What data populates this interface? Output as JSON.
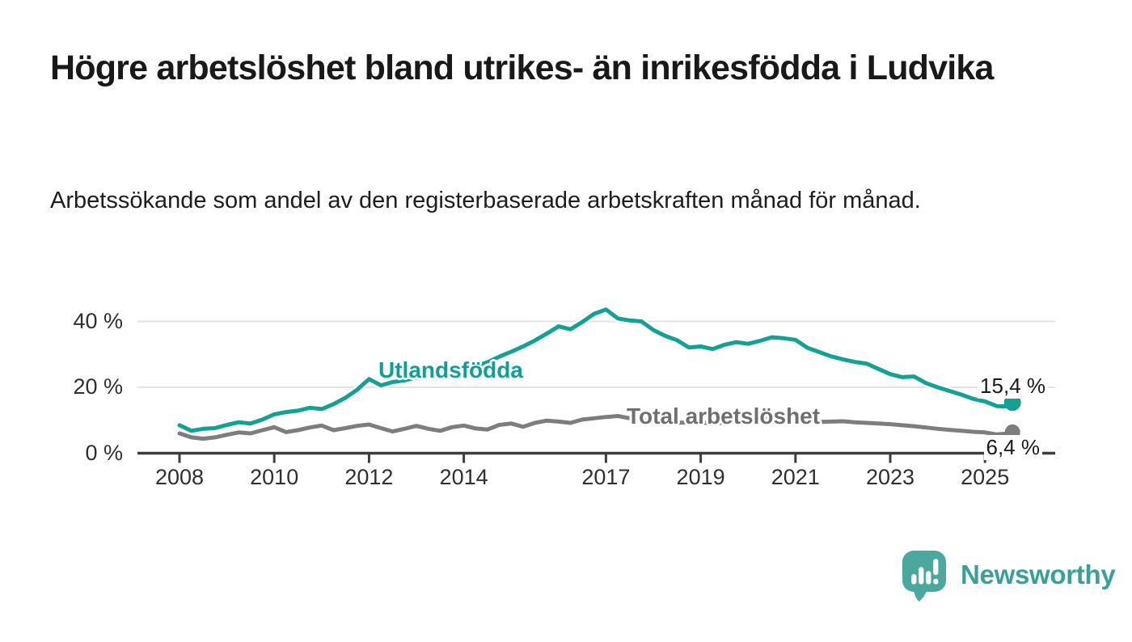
{
  "header": {
    "title": "Högre arbetslöshet bland utrikes- än inrikesfödda i Ludvika",
    "subtitle": "Arbetssökande som andel av den registerbaserade arbetskraften månad för månad."
  },
  "chart_data": {
    "type": "line",
    "title": "",
    "xlabel": "",
    "ylabel": "",
    "unit": "%",
    "x_range": [
      2008,
      2025.6
    ],
    "y_range": [
      0,
      45
    ],
    "grid": "horizontal",
    "x_ticks": [
      {
        "year": 2008,
        "label": "2008"
      },
      {
        "year": 2010,
        "label": "2010"
      },
      {
        "year": 2012,
        "label": "2012"
      },
      {
        "year": 2014,
        "label": "2014"
      },
      {
        "year": 2017,
        "label": "2017"
      },
      {
        "year": 2019,
        "label": "2019"
      },
      {
        "year": 2021,
        "label": "2021"
      },
      {
        "year": 2023,
        "label": "2023"
      },
      {
        "year": 2025,
        "label": "2025"
      }
    ],
    "y_ticks": [
      {
        "value": 0,
        "label": "0 %"
      },
      {
        "value": 20,
        "label": "20 %"
      },
      {
        "value": 40,
        "label": "40 %"
      }
    ],
    "series": [
      {
        "name": "Utlandsfödda",
        "color": "#12a192",
        "end_label": "15,4 %",
        "end_value": 15.4,
        "points": [
          [
            2008.0,
            8.5
          ],
          [
            2008.25,
            6.8
          ],
          [
            2008.5,
            7.4
          ],
          [
            2008.75,
            7.6
          ],
          [
            2009.0,
            8.6
          ],
          [
            2009.25,
            9.4
          ],
          [
            2009.5,
            9.0
          ],
          [
            2009.75,
            10.2
          ],
          [
            2010.0,
            11.8
          ],
          [
            2010.25,
            12.5
          ],
          [
            2010.5,
            12.9
          ],
          [
            2010.75,
            13.8
          ],
          [
            2011.0,
            13.4
          ],
          [
            2011.25,
            14.9
          ],
          [
            2011.5,
            16.8
          ],
          [
            2011.75,
            19.3
          ],
          [
            2012.0,
            22.5
          ],
          [
            2012.25,
            20.6
          ],
          [
            2012.5,
            21.6
          ],
          [
            2012.75,
            22.1
          ],
          [
            2013.0,
            23.0
          ],
          [
            2013.25,
            23.6
          ],
          [
            2013.5,
            24.1
          ],
          [
            2013.75,
            24.7
          ],
          [
            2014.0,
            25.5
          ],
          [
            2014.25,
            26.4
          ],
          [
            2014.5,
            27.6
          ],
          [
            2014.75,
            29.3
          ],
          [
            2015.0,
            30.8
          ],
          [
            2015.25,
            32.4
          ],
          [
            2015.5,
            34.2
          ],
          [
            2015.75,
            36.3
          ],
          [
            2016.0,
            38.5
          ],
          [
            2016.25,
            37.6
          ],
          [
            2016.5,
            39.8
          ],
          [
            2016.75,
            42.3
          ],
          [
            2017.0,
            43.6
          ],
          [
            2017.25,
            40.9
          ],
          [
            2017.5,
            40.3
          ],
          [
            2017.75,
            40.0
          ],
          [
            2018.0,
            37.4
          ],
          [
            2018.25,
            35.6
          ],
          [
            2018.5,
            34.3
          ],
          [
            2018.75,
            32.1
          ],
          [
            2019.0,
            32.4
          ],
          [
            2019.25,
            31.6
          ],
          [
            2019.5,
            32.9
          ],
          [
            2019.75,
            33.7
          ],
          [
            2020.0,
            33.2
          ],
          [
            2020.25,
            34.1
          ],
          [
            2020.5,
            35.2
          ],
          [
            2020.75,
            34.9
          ],
          [
            2021.0,
            34.4
          ],
          [
            2021.25,
            32.0
          ],
          [
            2021.5,
            30.7
          ],
          [
            2021.75,
            29.4
          ],
          [
            2022.0,
            28.5
          ],
          [
            2022.25,
            27.7
          ],
          [
            2022.5,
            27.2
          ],
          [
            2022.75,
            25.6
          ],
          [
            2023.0,
            24.0
          ],
          [
            2023.25,
            23.1
          ],
          [
            2023.5,
            23.3
          ],
          [
            2023.75,
            21.3
          ],
          [
            2024.0,
            20.0
          ],
          [
            2024.25,
            18.9
          ],
          [
            2024.5,
            17.8
          ],
          [
            2024.75,
            16.5
          ],
          [
            2025.0,
            15.7
          ],
          [
            2025.25,
            14.3
          ],
          [
            2025.42,
            14.2
          ],
          [
            2025.58,
            15.4
          ]
        ]
      },
      {
        "name": "Total arbetslöshet",
        "color": "#7d7d7d",
        "end_label": "6,4 %",
        "end_value": 6.4,
        "points": [
          [
            2008.0,
            6.0
          ],
          [
            2008.25,
            4.8
          ],
          [
            2008.5,
            4.4
          ],
          [
            2008.75,
            4.8
          ],
          [
            2009.0,
            5.6
          ],
          [
            2009.25,
            6.3
          ],
          [
            2009.5,
            6.0
          ],
          [
            2009.75,
            7.0
          ],
          [
            2010.0,
            7.9
          ],
          [
            2010.25,
            6.4
          ],
          [
            2010.5,
            7.0
          ],
          [
            2010.75,
            7.8
          ],
          [
            2011.0,
            8.4
          ],
          [
            2011.25,
            7.0
          ],
          [
            2011.5,
            7.6
          ],
          [
            2011.75,
            8.3
          ],
          [
            2012.0,
            8.7
          ],
          [
            2012.25,
            7.6
          ],
          [
            2012.5,
            6.6
          ],
          [
            2012.75,
            7.4
          ],
          [
            2013.0,
            8.3
          ],
          [
            2013.25,
            7.4
          ],
          [
            2013.5,
            6.8
          ],
          [
            2013.75,
            7.9
          ],
          [
            2014.0,
            8.4
          ],
          [
            2014.25,
            7.5
          ],
          [
            2014.5,
            7.2
          ],
          [
            2014.75,
            8.6
          ],
          [
            2015.0,
            9.0
          ],
          [
            2015.25,
            8.0
          ],
          [
            2015.5,
            9.2
          ],
          [
            2015.75,
            9.9
          ],
          [
            2016.0,
            9.6
          ],
          [
            2016.25,
            9.2
          ],
          [
            2016.5,
            10.2
          ],
          [
            2016.75,
            10.6
          ],
          [
            2017.0,
            11.0
          ],
          [
            2017.25,
            11.3
          ],
          [
            2017.5,
            10.6
          ],
          [
            2017.75,
            10.1
          ],
          [
            2018.0,
            9.7
          ],
          [
            2018.25,
            9.4
          ],
          [
            2018.5,
            9.2
          ],
          [
            2018.75,
            9.4
          ],
          [
            2019.0,
            9.3
          ],
          [
            2019.25,
            9.1
          ],
          [
            2019.5,
            9.3
          ],
          [
            2019.75,
            9.6
          ],
          [
            2020.0,
            9.8
          ],
          [
            2020.25,
            10.4
          ],
          [
            2020.5,
            10.6
          ],
          [
            2020.75,
            10.3
          ],
          [
            2021.0,
            10.0
          ],
          [
            2021.25,
            9.7
          ],
          [
            2021.5,
            9.5
          ],
          [
            2021.75,
            9.6
          ],
          [
            2022.0,
            9.7
          ],
          [
            2022.25,
            9.4
          ],
          [
            2022.5,
            9.2
          ],
          [
            2022.75,
            9.0
          ],
          [
            2023.0,
            8.8
          ],
          [
            2023.25,
            8.5
          ],
          [
            2023.5,
            8.2
          ],
          [
            2023.75,
            7.8
          ],
          [
            2024.0,
            7.4
          ],
          [
            2024.25,
            7.1
          ],
          [
            2024.5,
            6.8
          ],
          [
            2024.75,
            6.5
          ],
          [
            2025.0,
            6.3
          ],
          [
            2025.25,
            5.7
          ],
          [
            2025.42,
            5.9
          ],
          [
            2025.58,
            6.4
          ]
        ]
      }
    ],
    "colors": {
      "axis": "#3d3d3d",
      "gridline": "#e3e3e3",
      "tick_text": "#2f2f2f"
    }
  },
  "branding": {
    "logo_text": "Newsworthy",
    "logo_icon": "speech-bubble-bar-chart",
    "logo_bubble_color": "#4aa89d",
    "logo_text_color": "#38a197"
  }
}
